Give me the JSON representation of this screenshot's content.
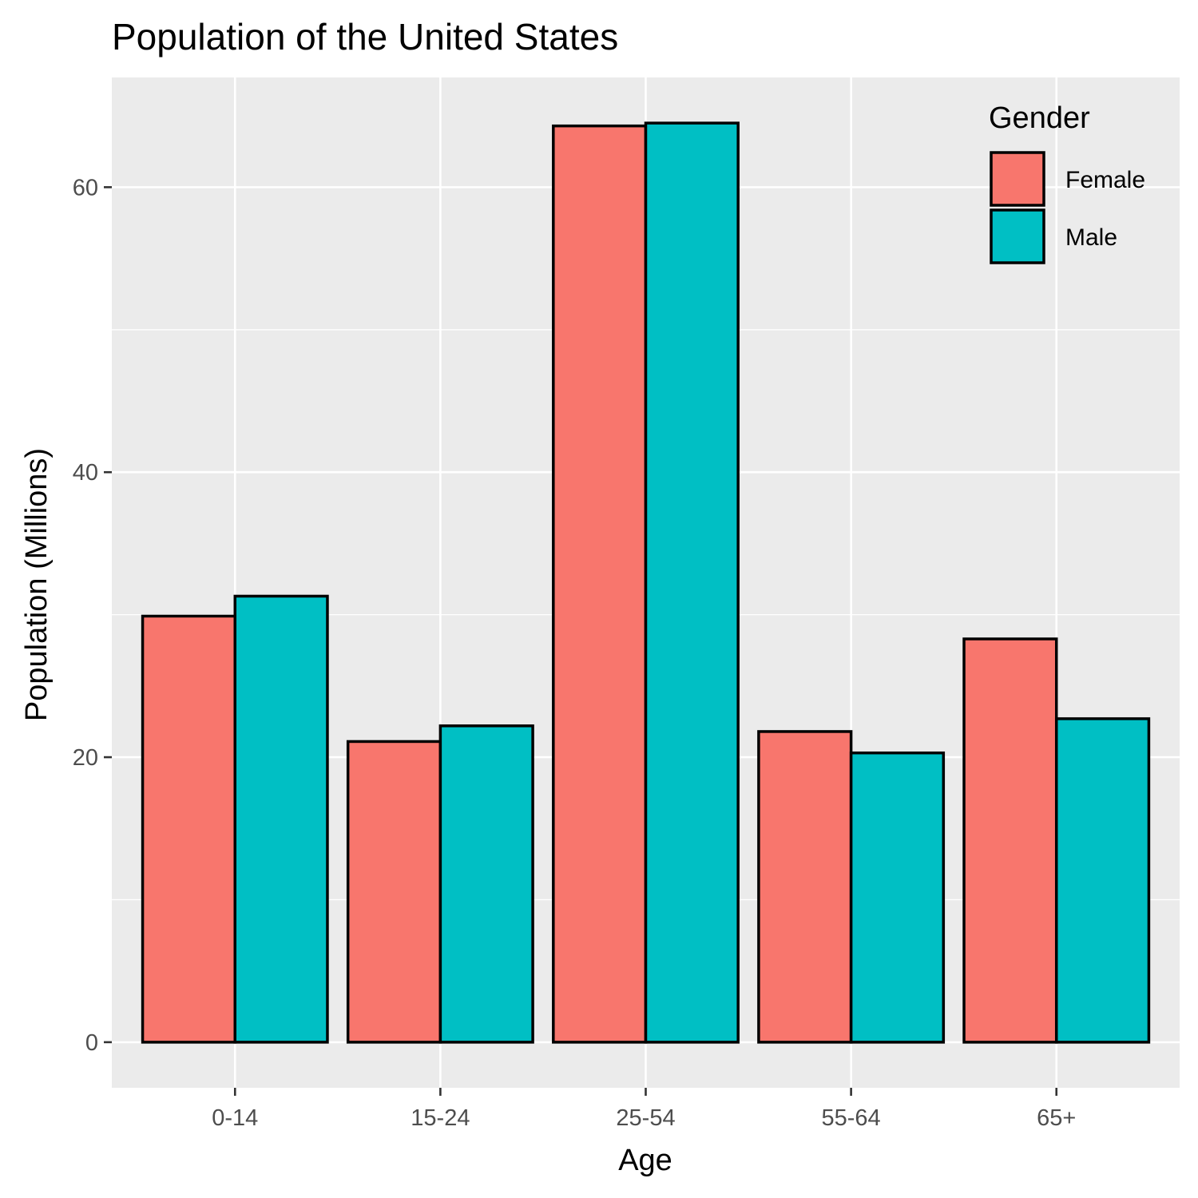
{
  "chart_data": {
    "type": "bar",
    "title": "Population of the United States",
    "xlabel": "Age",
    "ylabel": "Population (Millions)",
    "categories": [
      "0-14",
      "15-24",
      "25-54",
      "55-64",
      "65+"
    ],
    "series": [
      {
        "name": "Female",
        "values": [
          29.9,
          21.1,
          64.3,
          21.8,
          28.3
        ],
        "color": "#F8766D"
      },
      {
        "name": "Male",
        "values": [
          31.3,
          22.2,
          64.5,
          20.3,
          22.7
        ],
        "color": "#00BFC4"
      }
    ],
    "ylim": [
      -3.2,
      67.7
    ],
    "yticks": [
      0,
      20,
      40,
      60
    ],
    "yticks_labels": [
      "0",
      "20",
      "40",
      "60"
    ],
    "grid": true,
    "legend": {
      "title": "Gender",
      "position": "top-right"
    },
    "panel_background": "#EBEBEB"
  }
}
